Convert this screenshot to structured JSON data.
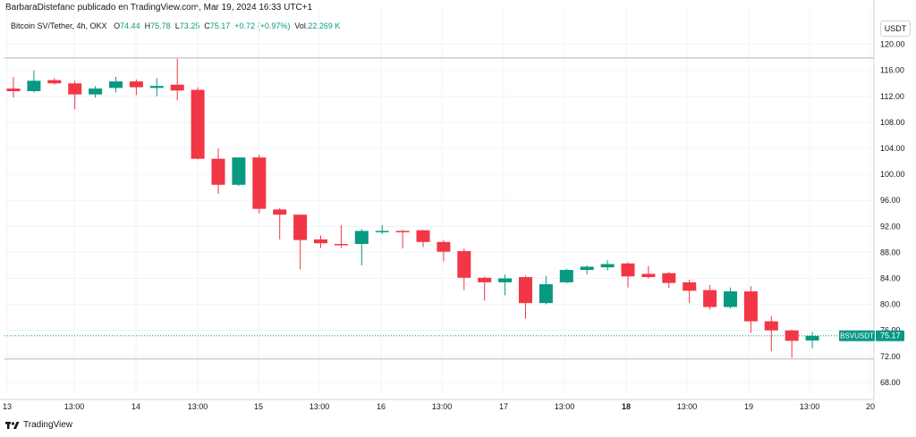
{
  "header": {
    "publisher_line": "BarbaraDistefano publicado en TradingView.com, Mar 19, 2024 16:33 UTC+1"
  },
  "legend": {
    "title": "Bitcoin SV/Tether, 4h, OKX",
    "o_label": "O",
    "o_value": "74.44",
    "h_label": "H",
    "h_value": "75.78",
    "l_label": "L",
    "l_value": "73.25",
    "c_label": "C",
    "c_value": "75.17",
    "change": "+0.72 (+0.97%)",
    "vol_label": "Vol.",
    "vol_value": "22.269 K"
  },
  "currency": "USDT",
  "price_tag": {
    "symbol": "BSVUSDT",
    "price": "75.17"
  },
  "brand": "TradingView",
  "colors": {
    "up": "#089981",
    "down": "#f23645",
    "grid": "#f0f3fa",
    "accent": "#089981"
  },
  "chart_data": {
    "type": "candlestick",
    "y_ticks": [
      "120.00",
      "116.00",
      "112.00",
      "108.00",
      "104.00",
      "100.00",
      "96.00",
      "92.00",
      "88.00",
      "84.00",
      "80.00",
      "76.00",
      "72.00",
      "68.00"
    ],
    "x_ticks": [
      {
        "label": "13",
        "bold": false
      },
      {
        "label": "13:00",
        "bold": false
      },
      {
        "label": "14",
        "bold": false
      },
      {
        "label": "13:00",
        "bold": false
      },
      {
        "label": "15",
        "bold": false
      },
      {
        "label": "13:00",
        "bold": false
      },
      {
        "label": "16",
        "bold": false
      },
      {
        "label": "13:00",
        "bold": false
      },
      {
        "label": "17",
        "bold": false
      },
      {
        "label": "13:00",
        "bold": false
      },
      {
        "label": "18",
        "bold": true
      },
      {
        "label": "13:00",
        "bold": false
      },
      {
        "label": "19",
        "bold": false
      },
      {
        "label": "13:00",
        "bold": false
      },
      {
        "label": "20",
        "bold": false
      }
    ],
    "ylim": [
      67,
      122
    ],
    "last_price": 75.17,
    "horizontal_lines": [
      117.9,
      71.6
    ],
    "candles": [
      {
        "o": 113.2,
        "h": 115.0,
        "l": 111.8,
        "c": 112.8
      },
      {
        "o": 112.8,
        "h": 116.0,
        "l": 112.6,
        "c": 114.4
      },
      {
        "o": 114.5,
        "h": 114.8,
        "l": 113.8,
        "c": 114.0
      },
      {
        "o": 114.0,
        "h": 114.4,
        "l": 110.0,
        "c": 112.3
      },
      {
        "o": 112.3,
        "h": 113.6,
        "l": 111.8,
        "c": 113.2
      },
      {
        "o": 113.3,
        "h": 115.0,
        "l": 112.6,
        "c": 114.3
      },
      {
        "o": 114.3,
        "h": 114.6,
        "l": 112.2,
        "c": 113.4
      },
      {
        "o": 113.3,
        "h": 114.8,
        "l": 112.0,
        "c": 113.6
      },
      {
        "o": 113.8,
        "h": 117.8,
        "l": 111.4,
        "c": 112.9
      },
      {
        "o": 113.0,
        "h": 113.4,
        "l": 102.3,
        "c": 102.4
      },
      {
        "o": 102.4,
        "h": 104.0,
        "l": 97.0,
        "c": 98.4
      },
      {
        "o": 98.4,
        "h": 102.6,
        "l": 98.2,
        "c": 102.6
      },
      {
        "o": 102.6,
        "h": 103.0,
        "l": 94.0,
        "c": 94.7
      },
      {
        "o": 94.6,
        "h": 94.8,
        "l": 90.0,
        "c": 93.8
      },
      {
        "o": 93.8,
        "h": 93.8,
        "l": 85.4,
        "c": 89.9
      },
      {
        "o": 90.0,
        "h": 90.6,
        "l": 88.7,
        "c": 89.4
      },
      {
        "o": 89.3,
        "h": 92.2,
        "l": 88.7,
        "c": 89.2
      },
      {
        "o": 89.3,
        "h": 91.6,
        "l": 86.0,
        "c": 91.3
      },
      {
        "o": 91.3,
        "h": 92.2,
        "l": 90.8,
        "c": 91.3
      },
      {
        "o": 91.3,
        "h": 91.5,
        "l": 88.6,
        "c": 91.2
      },
      {
        "o": 91.4,
        "h": 91.5,
        "l": 88.8,
        "c": 89.6
      },
      {
        "o": 89.6,
        "h": 89.9,
        "l": 86.6,
        "c": 88.1
      },
      {
        "o": 88.2,
        "h": 88.6,
        "l": 82.2,
        "c": 84.1
      },
      {
        "o": 84.1,
        "h": 84.3,
        "l": 80.6,
        "c": 83.4
      },
      {
        "o": 83.4,
        "h": 84.6,
        "l": 81.4,
        "c": 84.0
      },
      {
        "o": 84.2,
        "h": 84.4,
        "l": 77.8,
        "c": 80.2
      },
      {
        "o": 80.2,
        "h": 84.4,
        "l": 80.0,
        "c": 83.1
      },
      {
        "o": 83.4,
        "h": 85.5,
        "l": 83.2,
        "c": 85.3
      },
      {
        "o": 85.3,
        "h": 86.0,
        "l": 84.6,
        "c": 85.8
      },
      {
        "o": 85.7,
        "h": 86.8,
        "l": 85.2,
        "c": 86.2
      },
      {
        "o": 86.3,
        "h": 86.5,
        "l": 82.6,
        "c": 84.3
      },
      {
        "o": 84.7,
        "h": 85.9,
        "l": 84.0,
        "c": 84.2
      },
      {
        "o": 84.8,
        "h": 85.0,
        "l": 82.5,
        "c": 83.3
      },
      {
        "o": 83.4,
        "h": 83.8,
        "l": 80.2,
        "c": 82.1
      },
      {
        "o": 82.2,
        "h": 83.0,
        "l": 79.2,
        "c": 79.6
      },
      {
        "o": 79.6,
        "h": 82.6,
        "l": 79.4,
        "c": 82.0
      },
      {
        "o": 82.0,
        "h": 82.8,
        "l": 75.6,
        "c": 77.4
      },
      {
        "o": 77.4,
        "h": 78.2,
        "l": 72.8,
        "c": 76.0
      },
      {
        "o": 76.0,
        "h": 76.1,
        "l": 71.8,
        "c": 74.4
      },
      {
        "o": 74.44,
        "h": 75.78,
        "l": 73.25,
        "c": 75.17
      }
    ]
  }
}
